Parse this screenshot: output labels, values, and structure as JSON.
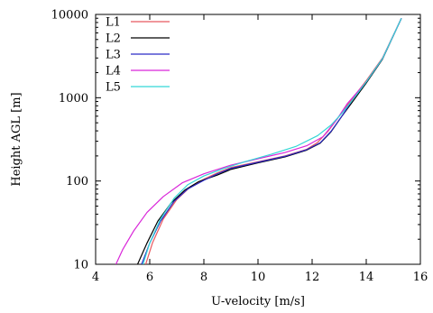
{
  "chart_data": {
    "type": "line",
    "xlabel": "U-velocity [m/s]",
    "ylabel": "Height AGL [m]",
    "xlim": [
      4,
      16
    ],
    "ylim": [
      10,
      10000
    ],
    "yscale": "log",
    "grid": false,
    "legend_placement": "top-left",
    "x_ticks": [
      4,
      6,
      8,
      10,
      12,
      14,
      16
    ],
    "y_ticks": [
      10,
      100,
      1000,
      10000
    ],
    "x_tick_labels": [
      "4",
      "6",
      "8",
      "10",
      "12",
      "14",
      "16"
    ],
    "y_tick_labels": [
      "10",
      "100",
      "1000",
      "10000"
    ],
    "series": [
      {
        "name": "L1",
        "color": "#e8595f",
        "points": [
          [
            5.85,
            10
          ],
          [
            6.1,
            18
          ],
          [
            6.5,
            35
          ],
          [
            7.0,
            60
          ],
          [
            7.5,
            85
          ],
          [
            8.0,
            105
          ],
          [
            8.5,
            125
          ],
          [
            9.0,
            145
          ],
          [
            10.0,
            170
          ],
          [
            11.0,
            200
          ],
          [
            11.8,
            240
          ],
          [
            12.2,
            290
          ],
          [
            12.6,
            400
          ],
          [
            13.0,
            600
          ],
          [
            13.4,
            900
          ],
          [
            14.0,
            1600
          ],
          [
            14.6,
            3000
          ],
          [
            15.3,
            9000
          ]
        ]
      },
      {
        "name": "L2",
        "color": "#000000",
        "points": [
          [
            5.55,
            10
          ],
          [
            5.9,
            18
          ],
          [
            6.3,
            33
          ],
          [
            6.8,
            55
          ],
          [
            7.3,
            78
          ],
          [
            7.8,
            98
          ],
          [
            8.5,
            118
          ],
          [
            9.0,
            138
          ],
          [
            10.0,
            165
          ],
          [
            11.0,
            195
          ],
          [
            11.8,
            235
          ],
          [
            12.3,
            285
          ],
          [
            12.7,
            390
          ],
          [
            13.1,
            600
          ],
          [
            13.5,
            900
          ],
          [
            14.0,
            1500
          ],
          [
            14.6,
            2900
          ],
          [
            15.3,
            9000
          ]
        ]
      },
      {
        "name": "L3",
        "color": "#2b2bc8",
        "points": [
          [
            5.7,
            10
          ],
          [
            6.0,
            18
          ],
          [
            6.4,
            33
          ],
          [
            6.9,
            57
          ],
          [
            7.4,
            80
          ],
          [
            8.0,
            102
          ],
          [
            8.5,
            122
          ],
          [
            9.0,
            142
          ],
          [
            10.0,
            168
          ],
          [
            11.0,
            198
          ],
          [
            11.8,
            238
          ],
          [
            12.3,
            288
          ],
          [
            12.7,
            395
          ],
          [
            13.1,
            600
          ],
          [
            13.45,
            900
          ],
          [
            14.0,
            1550
          ],
          [
            14.6,
            2950
          ],
          [
            15.3,
            9000
          ]
        ]
      },
      {
        "name": "L4",
        "color": "#d926d9",
        "points": [
          [
            4.75,
            10
          ],
          [
            5.0,
            15
          ],
          [
            5.4,
            25
          ],
          [
            5.9,
            42
          ],
          [
            6.5,
            65
          ],
          [
            7.2,
            95
          ],
          [
            8.0,
            122
          ],
          [
            9.0,
            155
          ],
          [
            10.0,
            185
          ],
          [
            11.0,
            220
          ],
          [
            11.8,
            265
          ],
          [
            12.4,
            340
          ],
          [
            12.9,
            540
          ],
          [
            13.3,
            850
          ],
          [
            14.0,
            1550
          ],
          [
            14.6,
            2950
          ],
          [
            15.3,
            9000
          ]
        ]
      },
      {
        "name": "L5",
        "color": "#33d6d6",
        "points": [
          [
            5.75,
            10
          ],
          [
            6.0,
            18
          ],
          [
            6.4,
            35
          ],
          [
            6.9,
            62
          ],
          [
            7.4,
            90
          ],
          [
            8.0,
            115
          ],
          [
            8.7,
            140
          ],
          [
            9.5,
            170
          ],
          [
            10.5,
            210
          ],
          [
            11.4,
            260
          ],
          [
            12.2,
            350
          ],
          [
            12.7,
            470
          ],
          [
            13.1,
            650
          ],
          [
            13.45,
            900
          ],
          [
            14.0,
            1550
          ],
          [
            14.6,
            2950
          ],
          [
            15.3,
            9000
          ]
        ]
      }
    ]
  }
}
